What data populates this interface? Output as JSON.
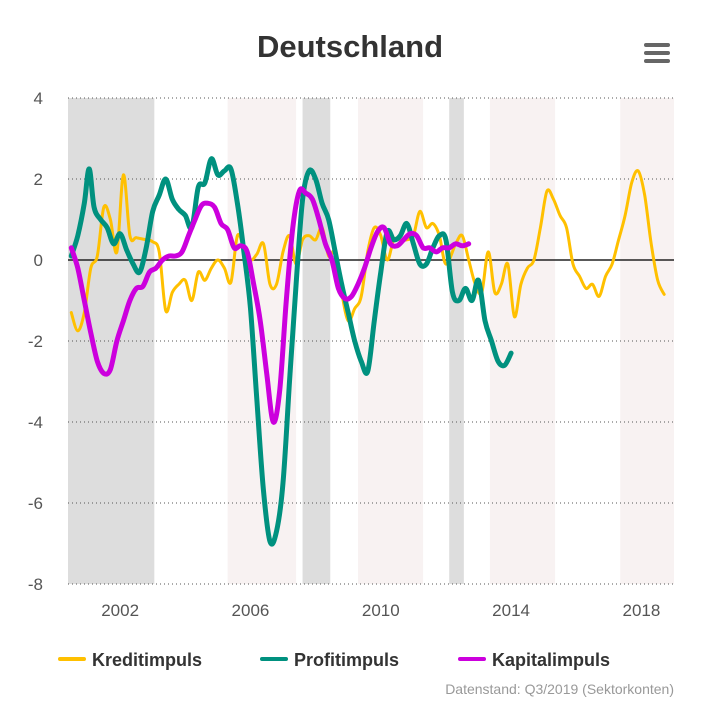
{
  "chart_data": {
    "type": "line",
    "title": "Deutschland",
    "xlabel": "",
    "ylabel": "",
    "xlim": [
      2000.4,
      2019.0
    ],
    "ylim": [
      -8,
      4
    ],
    "x_ticks": [
      {
        "value": 2002,
        "label": "2002"
      },
      {
        "value": 2006,
        "label": "2006"
      },
      {
        "value": 2010,
        "label": "2010"
      },
      {
        "value": 2014,
        "label": "2014"
      },
      {
        "value": 2018,
        "label": "2018"
      }
    ],
    "y_ticks": [
      {
        "value": 4,
        "label": "4"
      },
      {
        "value": 2,
        "label": "2"
      },
      {
        "value": 0,
        "label": "0"
      },
      {
        "value": -2,
        "label": "-2"
      },
      {
        "value": -4,
        "label": "-4"
      },
      {
        "value": -6,
        "label": "-6"
      },
      {
        "value": -8,
        "label": "-8"
      }
    ],
    "grid": "horizontal dotted",
    "bands": [
      {
        "from": 2000.4,
        "to": 2003.05,
        "kind": "gray"
      },
      {
        "from": 2005.3,
        "to": 2007.4,
        "kind": "pink"
      },
      {
        "from": 2007.6,
        "to": 2008.45,
        "kind": "gray"
      },
      {
        "from": 2009.3,
        "to": 2011.3,
        "kind": "pink"
      },
      {
        "from": 2012.1,
        "to": 2012.55,
        "kind": "gray"
      },
      {
        "from": 2013.35,
        "to": 2015.35,
        "kind": "pink"
      },
      {
        "from": 2017.35,
        "to": 2019.0,
        "kind": "pink"
      }
    ],
    "series": [
      {
        "name": "Kreditimpuls",
        "color": "#FFC000",
        "points": [
          [
            2000.5,
            -1.3
          ],
          [
            2000.7,
            -1.75
          ],
          [
            2000.9,
            -1.3
          ],
          [
            2001.1,
            -0.2
          ],
          [
            2001.3,
            0.1
          ],
          [
            2001.5,
            1.3
          ],
          [
            2001.7,
            1.0
          ],
          [
            2001.9,
            0.2
          ],
          [
            2002.1,
            2.1
          ],
          [
            2002.3,
            0.6
          ],
          [
            2002.5,
            0.55
          ],
          [
            2002.8,
            0.5
          ],
          [
            2003.0,
            0.45
          ],
          [
            2003.2,
            0.2
          ],
          [
            2003.4,
            -1.25
          ],
          [
            2003.6,
            -0.8
          ],
          [
            2003.8,
            -0.6
          ],
          [
            2004.0,
            -0.5
          ],
          [
            2004.2,
            -1.0
          ],
          [
            2004.4,
            -0.3
          ],
          [
            2004.6,
            -0.5
          ],
          [
            2004.8,
            -0.2
          ],
          [
            2005.0,
            0.0
          ],
          [
            2005.2,
            -0.2
          ],
          [
            2005.4,
            -0.55
          ],
          [
            2005.6,
            0.6
          ],
          [
            2005.8,
            0.3
          ],
          [
            2006.0,
            0.0
          ],
          [
            2006.2,
            0.15
          ],
          [
            2006.4,
            0.4
          ],
          [
            2006.6,
            -0.6
          ],
          [
            2006.8,
            -0.6
          ],
          [
            2007.0,
            0.2
          ],
          [
            2007.2,
            0.6
          ],
          [
            2007.4,
            -0.1
          ],
          [
            2007.6,
            0.5
          ],
          [
            2007.8,
            0.6
          ],
          [
            2008.0,
            0.5
          ],
          [
            2008.2,
            0.8
          ],
          [
            2008.4,
            0.1
          ],
          [
            2008.6,
            0.2
          ],
          [
            2008.8,
            -0.8
          ],
          [
            2009.0,
            -1.5
          ],
          [
            2009.2,
            -1.2
          ],
          [
            2009.4,
            -0.9
          ],
          [
            2009.6,
            0.2
          ],
          [
            2009.8,
            0.8
          ],
          [
            2010.0,
            0.6
          ],
          [
            2010.2,
            0.0
          ],
          [
            2010.4,
            0.5
          ],
          [
            2010.6,
            0.5
          ],
          [
            2010.8,
            0.5
          ],
          [
            2011.0,
            0.6
          ],
          [
            2011.2,
            1.2
          ],
          [
            2011.4,
            0.8
          ],
          [
            2011.6,
            0.9
          ],
          [
            2011.8,
            0.6
          ],
          [
            2012.0,
            -0.1
          ],
          [
            2012.3,
            0.4
          ],
          [
            2012.5,
            0.6
          ],
          [
            2012.7,
            0.0
          ],
          [
            2012.9,
            -0.6
          ],
          [
            2013.1,
            -0.8
          ],
          [
            2013.3,
            0.2
          ],
          [
            2013.5,
            -0.8
          ],
          [
            2013.7,
            -0.6
          ],
          [
            2013.9,
            -0.1
          ],
          [
            2014.1,
            -1.4
          ],
          [
            2014.3,
            -0.6
          ],
          [
            2014.5,
            -0.2
          ],
          [
            2014.7,
            0.0
          ],
          [
            2014.9,
            0.8
          ],
          [
            2015.1,
            1.7
          ],
          [
            2015.3,
            1.5
          ],
          [
            2015.5,
            1.1
          ],
          [
            2015.7,
            0.8
          ],
          [
            2015.9,
            -0.1
          ],
          [
            2016.1,
            -0.4
          ],
          [
            2016.3,
            -0.7
          ],
          [
            2016.5,
            -0.6
          ],
          [
            2016.7,
            -0.9
          ],
          [
            2016.9,
            -0.4
          ],
          [
            2017.1,
            -0.1
          ],
          [
            2017.3,
            0.5
          ],
          [
            2017.5,
            1.1
          ],
          [
            2017.7,
            1.9
          ],
          [
            2017.9,
            2.2
          ],
          [
            2018.1,
            1.6
          ],
          [
            2018.3,
            0.4
          ],
          [
            2018.5,
            -0.5
          ],
          [
            2018.7,
            -0.85
          ]
        ]
      },
      {
        "name": "Profitimpuls",
        "color": "#00917F",
        "points": [
          [
            2000.5,
            0.1
          ],
          [
            2000.7,
            0.6
          ],
          [
            2000.9,
            1.4
          ],
          [
            2001.05,
            2.25
          ],
          [
            2001.2,
            1.3
          ],
          [
            2001.4,
            1.0
          ],
          [
            2001.6,
            0.8
          ],
          [
            2001.8,
            0.4
          ],
          [
            2002.0,
            0.65
          ],
          [
            2002.2,
            0.25
          ],
          [
            2002.4,
            -0.1
          ],
          [
            2002.6,
            -0.3
          ],
          [
            2002.8,
            0.3
          ],
          [
            2003.0,
            1.2
          ],
          [
            2003.2,
            1.6
          ],
          [
            2003.4,
            2.0
          ],
          [
            2003.6,
            1.5
          ],
          [
            2003.8,
            1.25
          ],
          [
            2004.0,
            1.1
          ],
          [
            2004.2,
            0.8
          ],
          [
            2004.4,
            1.8
          ],
          [
            2004.6,
            1.9
          ],
          [
            2004.8,
            2.5
          ],
          [
            2005.0,
            2.1
          ],
          [
            2005.2,
            2.2
          ],
          [
            2005.4,
            2.25
          ],
          [
            2005.6,
            1.4
          ],
          [
            2005.8,
            0.2
          ],
          [
            2006.0,
            -1.2
          ],
          [
            2006.2,
            -3.5
          ],
          [
            2006.4,
            -5.7
          ],
          [
            2006.6,
            -6.95
          ],
          [
            2006.8,
            -6.7
          ],
          [
            2007.0,
            -5.5
          ],
          [
            2007.2,
            -3.0
          ],
          [
            2007.4,
            -0.6
          ],
          [
            2007.6,
            1.5
          ],
          [
            2007.8,
            2.2
          ],
          [
            2008.0,
            2.0
          ],
          [
            2008.2,
            1.4
          ],
          [
            2008.4,
            1.0
          ],
          [
            2008.6,
            0.2
          ],
          [
            2008.8,
            -0.6
          ],
          [
            2009.0,
            -1.3
          ],
          [
            2009.2,
            -2.0
          ],
          [
            2009.4,
            -2.5
          ],
          [
            2009.6,
            -2.75
          ],
          [
            2009.8,
            -1.5
          ],
          [
            2010.0,
            -0.3
          ],
          [
            2010.2,
            0.7
          ],
          [
            2010.4,
            0.5
          ],
          [
            2010.6,
            0.6
          ],
          [
            2010.8,
            0.9
          ],
          [
            2011.0,
            0.4
          ],
          [
            2011.2,
            -0.1
          ],
          [
            2011.4,
            -0.1
          ],
          [
            2011.6,
            0.3
          ],
          [
            2011.8,
            0.6
          ],
          [
            2012.0,
            0.5
          ],
          [
            2012.2,
            -0.8
          ],
          [
            2012.4,
            -1.0
          ],
          [
            2012.6,
            -0.7
          ],
          [
            2012.8,
            -1.0
          ],
          [
            2013.0,
            -0.5
          ],
          [
            2013.2,
            -1.5
          ],
          [
            2013.4,
            -2.0
          ],
          [
            2013.6,
            -2.5
          ],
          [
            2013.8,
            -2.6
          ],
          [
            2014.0,
            -2.3
          ]
        ]
      },
      {
        "name": "Kapitalimpuls",
        "color": "#CC00DD",
        "points": [
          [
            2000.5,
            0.3
          ],
          [
            2000.7,
            -0.2
          ],
          [
            2000.9,
            -1.0
          ],
          [
            2001.1,
            -1.8
          ],
          [
            2001.3,
            -2.5
          ],
          [
            2001.5,
            -2.8
          ],
          [
            2001.7,
            -2.7
          ],
          [
            2001.9,
            -2.0
          ],
          [
            2002.1,
            -1.5
          ],
          [
            2002.3,
            -1.0
          ],
          [
            2002.5,
            -0.7
          ],
          [
            2002.7,
            -0.65
          ],
          [
            2002.9,
            -0.3
          ],
          [
            2003.1,
            -0.2
          ],
          [
            2003.3,
            0.0
          ],
          [
            2003.5,
            0.1
          ],
          [
            2003.7,
            0.1
          ],
          [
            2003.9,
            0.2
          ],
          [
            2004.1,
            0.6
          ],
          [
            2004.3,
            1.0
          ],
          [
            2004.5,
            1.35
          ],
          [
            2004.7,
            1.4
          ],
          [
            2004.9,
            1.3
          ],
          [
            2005.1,
            0.9
          ],
          [
            2005.3,
            0.75
          ],
          [
            2005.5,
            0.3
          ],
          [
            2005.7,
            0.35
          ],
          [
            2005.9,
            0.2
          ],
          [
            2006.1,
            -0.6
          ],
          [
            2006.3,
            -1.5
          ],
          [
            2006.5,
            -2.8
          ],
          [
            2006.7,
            -4.0
          ],
          [
            2006.9,
            -3.2
          ],
          [
            2007.1,
            -1.0
          ],
          [
            2007.3,
            0.8
          ],
          [
            2007.5,
            1.7
          ],
          [
            2007.7,
            1.65
          ],
          [
            2007.9,
            1.5
          ],
          [
            2008.1,
            1.0
          ],
          [
            2008.3,
            0.4
          ],
          [
            2008.5,
            0.0
          ],
          [
            2008.7,
            -0.7
          ],
          [
            2008.9,
            -0.95
          ],
          [
            2009.1,
            -0.9
          ],
          [
            2009.3,
            -0.6
          ],
          [
            2009.5,
            -0.2
          ],
          [
            2009.7,
            0.3
          ],
          [
            2009.9,
            0.7
          ],
          [
            2010.1,
            0.8
          ],
          [
            2010.3,
            0.4
          ],
          [
            2010.5,
            0.35
          ],
          [
            2010.7,
            0.5
          ],
          [
            2010.9,
            0.65
          ],
          [
            2011.1,
            0.6
          ],
          [
            2011.3,
            0.3
          ],
          [
            2011.5,
            0.3
          ],
          [
            2011.7,
            0.2
          ],
          [
            2011.9,
            0.3
          ],
          [
            2012.1,
            0.3
          ],
          [
            2012.3,
            0.4
          ],
          [
            2012.5,
            0.35
          ],
          [
            2012.7,
            0.4
          ]
        ]
      }
    ],
    "legend_position": "bottom",
    "credit": "Datenstand: Q3/2019 (Sektorkonten)"
  },
  "menu_icon": "hamburger-menu-icon"
}
